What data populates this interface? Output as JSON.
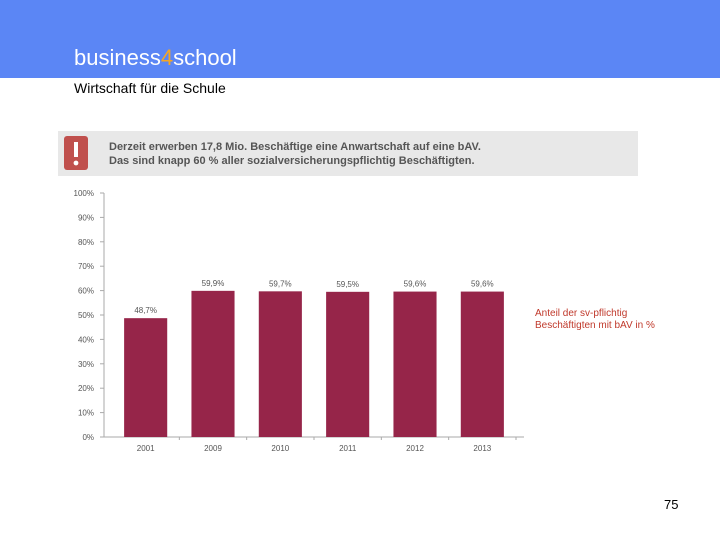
{
  "header": {
    "brand_prefix": "business",
    "brand_digit": "4",
    "brand_suffix": "school",
    "subtitle": "Wirtschaft für die Schule",
    "bar_color": "#5b86f5",
    "accent_color": "#f5a623"
  },
  "banner": {
    "icon": "exclamation-icon",
    "line1": "Derzeit erwerben 17,8 Mio. Beschäftige eine Anwartschaft auf eine bAV.",
    "line2": "Das sind knapp 60 % aller sozialversicherungspflichtig Beschäftigten."
  },
  "chart_data": {
    "type": "bar",
    "categories": [
      "2001",
      "2009",
      "2010",
      "2011",
      "2012",
      "2013"
    ],
    "values": [
      48.7,
      59.9,
      59.7,
      59.5,
      59.6,
      59.6
    ],
    "value_labels": [
      "48,7%",
      "59,9%",
      "59,7%",
      "59,5%",
      "59,6%",
      "59,6%"
    ],
    "y_ticks": [
      "0%",
      "10%",
      "20%",
      "30%",
      "40%",
      "50%",
      "60%",
      "70%",
      "80%",
      "90%",
      "100%"
    ],
    "ylim": [
      0,
      100
    ],
    "bar_color": "#962549",
    "legend_text": "Anteil der sv-pflichtig Beschäftigten mit bAV in %",
    "legend_color": "#c0392b",
    "grid": false
  },
  "footer": {
    "page_number": "75"
  }
}
